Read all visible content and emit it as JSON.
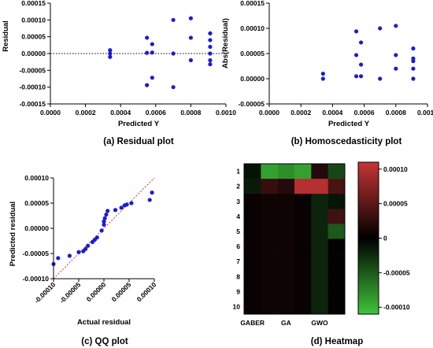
{
  "colors": {
    "points": "#1c1cd6",
    "refline": "#e0301e",
    "zero": "#000000"
  },
  "chart_data": [
    {
      "type": "scatter",
      "caption": "(a) Residual plot",
      "xlabel": "Predicted Y",
      "ylabel": "Residual",
      "xlim": [
        0,
        0.001
      ],
      "ylim": [
        -0.00015,
        0.00015
      ],
      "xticks": [
        "0.0000",
        "0.0002",
        "0.0004",
        "0.0006",
        "0.0008",
        "0.0010"
      ],
      "yticks": [
        "0.00015",
        "0.00010",
        "0.00005",
        "0.00000",
        "-0.00005",
        "-0.00010",
        "-0.00015"
      ],
      "reference_line": {
        "y": 0,
        "style": "dotted"
      },
      "points": [
        [
          0.00034,
          1e-05
        ],
        [
          0.00034,
          -1e-05
        ],
        [
          0.00034,
          0.0
        ],
        [
          0.00055,
          4.7e-05
        ],
        [
          0.00055,
          2e-06
        ],
        [
          0.00055,
          -9.4e-05
        ],
        [
          0.00058,
          2.8e-05
        ],
        [
          0.00058,
          -7.2e-05
        ],
        [
          0.00058,
          3e-06
        ],
        [
          0.0007,
          0.0001
        ],
        [
          0.0007,
          0.0
        ],
        [
          0.0007,
          -0.0001
        ],
        [
          0.0008,
          0.000105
        ],
        [
          0.0008,
          4.7e-05
        ],
        [
          0.0008,
          -2e-05
        ],
        [
          0.00091,
          6e-05
        ],
        [
          0.00091,
          4e-05
        ],
        [
          0.00091,
          2e-05
        ],
        [
          0.00091,
          0.0
        ],
        [
          0.00091,
          -2e-05
        ],
        [
          0.00091,
          -3.2e-05
        ]
      ]
    },
    {
      "type": "scatter",
      "caption": "(b) Homoscedasticity plot",
      "xlabel": "Predicted Y",
      "ylabel": "Abs(Residual)",
      "xlim": [
        0,
        0.001
      ],
      "ylim": [
        -5e-05,
        0.00015
      ],
      "xticks": [
        "0.0000",
        "0.0002",
        "0.0004",
        "0.0006",
        "0.0008",
        "0.0010"
      ],
      "yticks": [
        "0.00015",
        "0.00010",
        "0.00005",
        "0.00000",
        "-0.00005"
      ],
      "points": [
        [
          0.00034,
          1e-05
        ],
        [
          0.00034,
          0.0
        ],
        [
          0.00055,
          9.4e-05
        ],
        [
          0.00055,
          4.7e-05
        ],
        [
          0.00055,
          5e-06
        ],
        [
          0.00058,
          7.2e-05
        ],
        [
          0.00058,
          2.8e-05
        ],
        [
          0.00058,
          5e-06
        ],
        [
          0.0007,
          0.0001
        ],
        [
          0.0007,
          0.0
        ],
        [
          0.0008,
          0.000105
        ],
        [
          0.0008,
          4.7e-05
        ],
        [
          0.0008,
          2e-05
        ],
        [
          0.00091,
          6e-05
        ],
        [
          0.00091,
          4e-05
        ],
        [
          0.00091,
          3.5e-05
        ],
        [
          0.00091,
          2e-05
        ],
        [
          0.00091,
          0.0
        ]
      ]
    },
    {
      "type": "scatter",
      "caption": "(c) QQ plot",
      "xlabel": "Actual residual",
      "ylabel": "Predicted residual",
      "xlim": [
        -0.00011,
        0.00011
      ],
      "ylim": [
        -0.00011,
        0.00011
      ],
      "xticks": [
        "-0.00010",
        "-0.00005",
        "0.00000",
        "0.00005",
        "0.00010"
      ],
      "yticks": [
        "0.00010",
        "0.00005",
        "0.00000",
        "-0.00005",
        "-0.00010"
      ],
      "reference_line": {
        "from": [
          -0.00011,
          -0.00011
        ],
        "to": [
          0.00011,
          0.00011
        ],
        "style": "dotted"
      },
      "points": [
        [
          -0.00011,
          -7.8e-05
        ],
        [
          -0.0001,
          -6.5e-05
        ],
        [
          -7.5e-05,
          -6e-05
        ],
        [
          -5.5e-05,
          -5.2e-05
        ],
        [
          -4.5e-05,
          -5e-05
        ],
        [
          -4e-05,
          -4.5e-05
        ],
        [
          -3.5e-05,
          -3.8e-05
        ],
        [
          -2.5e-05,
          -3e-05
        ],
        [
          -2e-05,
          -2.5e-05
        ],
        [
          -1.5e-05,
          -2e-05
        ],
        [
          -5e-06,
          -5e-06
        ],
        [
          0.0,
          8e-06
        ],
        [
          0.0,
          1.5e-05
        ],
        [
          2e-06,
          2.2e-05
        ],
        [
          5e-06,
          3e-05
        ],
        [
          8e-06,
          3.8e-05
        ],
        [
          2.5e-05,
          4e-05
        ],
        [
          3.8e-05,
          4.5e-05
        ],
        [
          4.5e-05,
          5e-05
        ],
        [
          5e-05,
          5.2e-05
        ],
        [
          6e-05,
          5.5e-05
        ],
        [
          0.0001,
          6.2e-05
        ],
        [
          0.000105,
          7.8e-05
        ]
      ]
    },
    {
      "type": "heatmap",
      "caption": "(d) Heatmap",
      "rows": [
        "1",
        "2",
        "3",
        "4",
        "5",
        "6",
        "7",
        "8",
        "9",
        "10"
      ],
      "columns": [
        "GABER",
        "",
        "GA",
        "",
        "GWO",
        ""
      ],
      "xticks": [
        "GABER",
        "GA",
        "GWO"
      ],
      "colorbar": {
        "min": -0.00011,
        "max": 0.00011,
        "ticks": [
          0.0001,
          5e-05,
          0,
          -5e-05,
          -0.0001
        ],
        "tick_labels": [
          "0.00010",
          "0.00005",
          "0",
          "-0.00005",
          "-0.00010"
        ]
      },
      "values": [
        [
          -1e-05,
          -9e-05,
          -8e-05,
          -9e-05,
          2e-05,
          -4e-05
        ],
        [
          -1.5e-05,
          3e-05,
          2e-05,
          0.0001,
          0.0001,
          4e-05
        ],
        [
          5e-06,
          8e-06,
          8e-06,
          5e-06,
          -2e-05,
          -1.2e-05
        ],
        [
          5e-06,
          8e-06,
          8e-06,
          5e-06,
          -2e-05,
          3.5e-05
        ],
        [
          5e-06,
          8e-06,
          8e-06,
          5e-06,
          -2e-05,
          -5e-05
        ],
        [
          5e-06,
          8e-06,
          8e-06,
          5e-06,
          -2e-05,
          2e-06
        ],
        [
          5e-06,
          8e-06,
          8e-06,
          5e-06,
          -2e-05,
          2e-06
        ],
        [
          5e-06,
          8e-06,
          8e-06,
          5e-06,
          -2e-05,
          2e-06
        ],
        [
          5e-06,
          8e-06,
          8e-06,
          5e-06,
          -2e-05,
          2e-06
        ],
        [
          5e-06,
          8e-06,
          8e-06,
          5e-06,
          -2e-05,
          2e-06
        ]
      ]
    }
  ]
}
